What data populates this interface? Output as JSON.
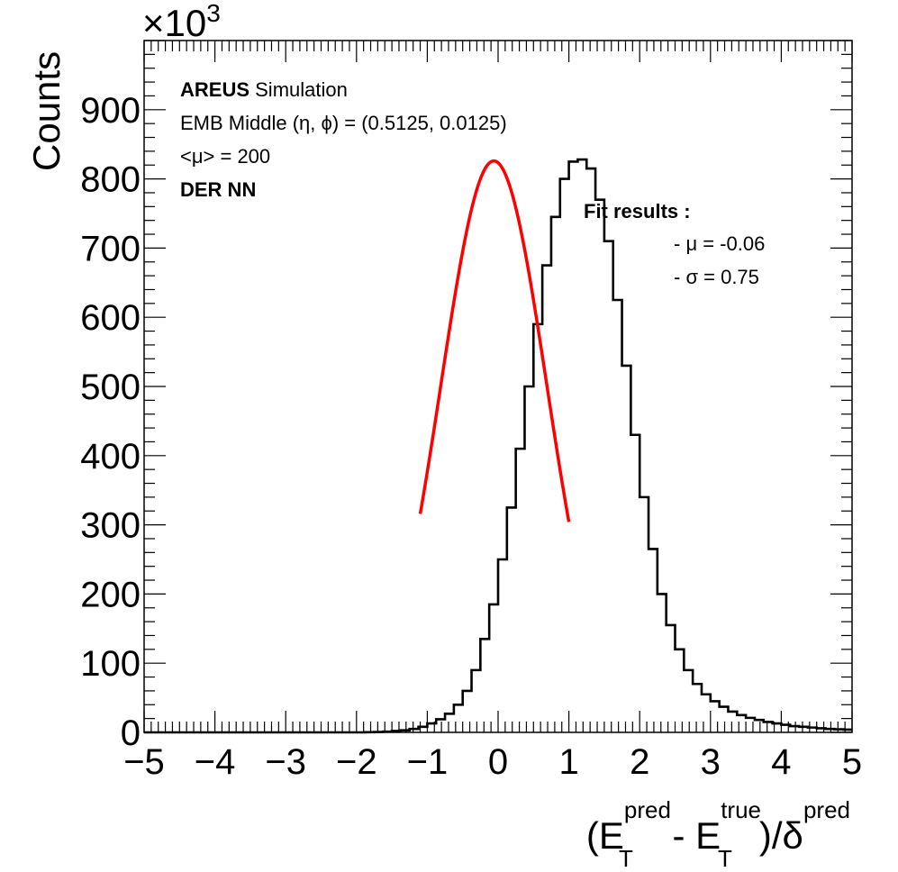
{
  "chart_data": {
    "type": "histogram",
    "title": "",
    "ylabel": "Counts",
    "yscale_label": "×10",
    "yscale_exponent": "3",
    "xlabel_parts": {
      "open": "(E",
      "sup1": "pred",
      "sub1": "T",
      "minus": " - E",
      "sup2": "true",
      "sub2": "T",
      "close": ")/δ",
      "sup3": "pred"
    },
    "xlim": [
      -5,
      5
    ],
    "ylim": [
      0,
      1000
    ],
    "xticks": [
      -5,
      -4,
      -3,
      -2,
      -1,
      0,
      1,
      2,
      3,
      4,
      5
    ],
    "xtick_labels": [
      "−5",
      "−4",
      "−3",
      "−2",
      "−1",
      "0",
      "1",
      "2",
      "3",
      "4",
      "5"
    ],
    "yticks": [
      0,
      100,
      200,
      300,
      400,
      500,
      600,
      700,
      800,
      900
    ],
    "ytick_labels": [
      "0",
      "100",
      "200",
      "300",
      "400",
      "500",
      "600",
      "700",
      "800",
      "900"
    ],
    "bin_width": 0.125,
    "bin_start": -5,
    "values": [
      0,
      0,
      0,
      0,
      0,
      0,
      0,
      0,
      0,
      0,
      0,
      0,
      0,
      0,
      0,
      0,
      0,
      0,
      0,
      0,
      0,
      0,
      0,
      0,
      0,
      0.3,
      0.6,
      1,
      2,
      3,
      5,
      8,
      13,
      19,
      27,
      40,
      60,
      90,
      135,
      185,
      250,
      325,
      410,
      500,
      590,
      675,
      745,
      800,
      825,
      828,
      815,
      770,
      710,
      625,
      530,
      430,
      340,
      265,
      200,
      155,
      120,
      90,
      70,
      55,
      45,
      37,
      30,
      25,
      21,
      18,
      15,
      13,
      11,
      9,
      8,
      7,
      6,
      5,
      4.5,
      4
    ]
  },
  "fit_curve": {
    "mu": -0.06,
    "sigma": 0.75,
    "peak": 826,
    "x_range": [
      -1.1,
      1.0
    ],
    "color": "#ff0000"
  },
  "annotations": {
    "line1_bold": "AREUS",
    "line1_rest": " Simulation",
    "line2": "EMB Middle (η, ϕ) = (0.5125, 0.0125)",
    "line3": "<μ> = 200",
    "line4": "DER NN",
    "fit_title": "Fit results :",
    "fit_mu": "- μ = -0.06",
    "fit_sigma": "- σ = 0.75"
  }
}
